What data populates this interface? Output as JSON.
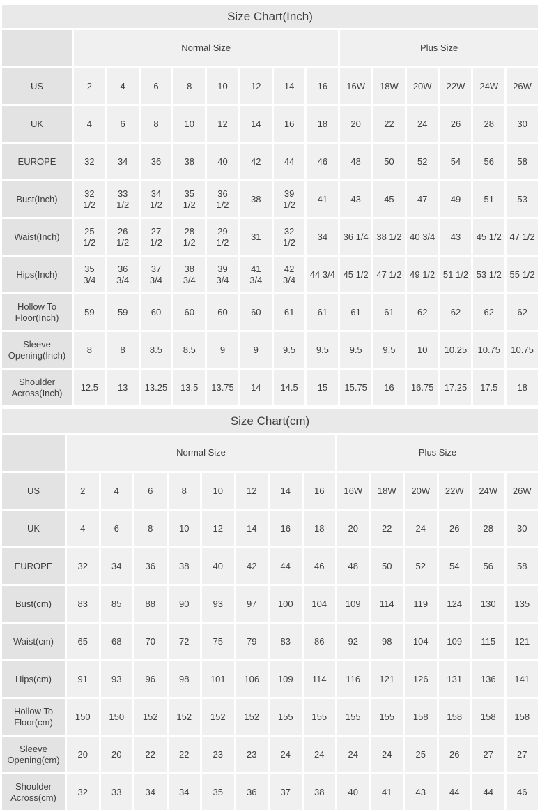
{
  "colors": {
    "title_bg": "#e9e9e9",
    "label_bg": "#e3e3e3",
    "cell_bg": "#f0f0f0",
    "text": "#3f3f3f"
  },
  "tables": [
    {
      "title": "Size Chart(Inch)",
      "unit": "inch",
      "group_headers": [
        {
          "label": "Normal Size",
          "span": 8
        },
        {
          "label": "Plus Size",
          "span": 6
        }
      ],
      "rows": [
        {
          "label": "US",
          "values": [
            "2",
            "4",
            "6",
            "8",
            "10",
            "12",
            "14",
            "16",
            "16W",
            "18W",
            "20W",
            "22W",
            "24W",
            "26W"
          ]
        },
        {
          "label": "UK",
          "values": [
            "4",
            "6",
            "8",
            "10",
            "12",
            "14",
            "16",
            "18",
            "20",
            "22",
            "24",
            "26",
            "28",
            "30"
          ]
        },
        {
          "label": "EUROPE",
          "values": [
            "32",
            "34",
            "36",
            "38",
            "40",
            "42",
            "44",
            "46",
            "48",
            "50",
            "52",
            "54",
            "56",
            "58"
          ]
        },
        {
          "label": "Bust(Inch)",
          "values": [
            "32\n1/2",
            "33\n1/2",
            "34\n1/2",
            "35\n1/2",
            "36\n1/2",
            "38",
            "39\n1/2",
            "41",
            "43",
            "45",
            "47",
            "49",
            "51",
            "53"
          ]
        },
        {
          "label": "Waist(Inch)",
          "values": [
            "25\n1/2",
            "26\n1/2",
            "27\n1/2",
            "28\n1/2",
            "29\n1/2",
            "31",
            "32\n1/2",
            "34",
            "36 1/4",
            "38 1/2",
            "40 3/4",
            "43",
            "45 1/2",
            "47 1/2"
          ]
        },
        {
          "label": "Hips(Inch)",
          "values": [
            "35\n3/4",
            "36\n3/4",
            "37\n3/4",
            "38\n3/4",
            "39\n3/4",
            "41\n3/4",
            "42\n3/4",
            "44 3/4",
            "45 1/2",
            "47 1/2",
            "49 1/2",
            "51 1/2",
            "53 1/2",
            "55 1/2"
          ]
        },
        {
          "label": "Hollow To\nFloor(Inch)",
          "values": [
            "59",
            "59",
            "60",
            "60",
            "60",
            "60",
            "61",
            "61",
            "61",
            "61",
            "62",
            "62",
            "62",
            "62"
          ]
        },
        {
          "label": "Sleeve\nOpening(Inch)",
          "values": [
            "8",
            "8",
            "8.5",
            "8.5",
            "9",
            "9",
            "9.5",
            "9.5",
            "9.5",
            "9.5",
            "10",
            "10.25",
            "10.75",
            "10.75"
          ]
        },
        {
          "label": "Shoulder\nAcross(Inch)",
          "values": [
            "12.5",
            "13",
            "13.25",
            "13.5",
            "13.75",
            "14",
            "14.5",
            "15",
            "15.75",
            "16",
            "16.75",
            "17.25",
            "17.5",
            "18"
          ]
        }
      ]
    },
    {
      "title": "Size Chart(cm)",
      "unit": "cm",
      "group_headers": [
        {
          "label": "Normal Size",
          "span": 8
        },
        {
          "label": "Plus Size",
          "span": 6
        }
      ],
      "rows": [
        {
          "label": "US",
          "values": [
            "2",
            "4",
            "6",
            "8",
            "10",
            "12",
            "14",
            "16",
            "16W",
            "18W",
            "20W",
            "22W",
            "24W",
            "26W"
          ]
        },
        {
          "label": "UK",
          "values": [
            "4",
            "6",
            "8",
            "10",
            "12",
            "14",
            "16",
            "18",
            "20",
            "22",
            "24",
            "26",
            "28",
            "30"
          ]
        },
        {
          "label": "EUROPE",
          "values": [
            "32",
            "34",
            "36",
            "38",
            "40",
            "42",
            "44",
            "46",
            "48",
            "50",
            "52",
            "54",
            "56",
            "58"
          ]
        },
        {
          "label": "Bust(cm)",
          "values": [
            "83",
            "85",
            "88",
            "90",
            "93",
            "97",
            "100",
            "104",
            "109",
            "114",
            "119",
            "124",
            "130",
            "135"
          ]
        },
        {
          "label": "Waist(cm)",
          "values": [
            "65",
            "68",
            "70",
            "72",
            "75",
            "79",
            "83",
            "86",
            "92",
            "98",
            "104",
            "109",
            "115",
            "121"
          ]
        },
        {
          "label": "Hips(cm)",
          "values": [
            "91",
            "93",
            "96",
            "98",
            "101",
            "106",
            "109",
            "114",
            "116",
            "121",
            "126",
            "131",
            "136",
            "141"
          ]
        },
        {
          "label": "Hollow To\nFloor(cm)",
          "values": [
            "150",
            "150",
            "152",
            "152",
            "152",
            "152",
            "155",
            "155",
            "155",
            "155",
            "158",
            "158",
            "158",
            "158"
          ]
        },
        {
          "label": "Sleeve\nOpening(cm)",
          "values": [
            "20",
            "20",
            "22",
            "22",
            "23",
            "23",
            "24",
            "24",
            "24",
            "24",
            "25",
            "26",
            "27",
            "27"
          ]
        },
        {
          "label": "Shoulder\nAcross(cm)",
          "values": [
            "32",
            "33",
            "34",
            "34",
            "35",
            "36",
            "37",
            "38",
            "40",
            "41",
            "43",
            "44",
            "44",
            "46"
          ]
        }
      ]
    }
  ]
}
